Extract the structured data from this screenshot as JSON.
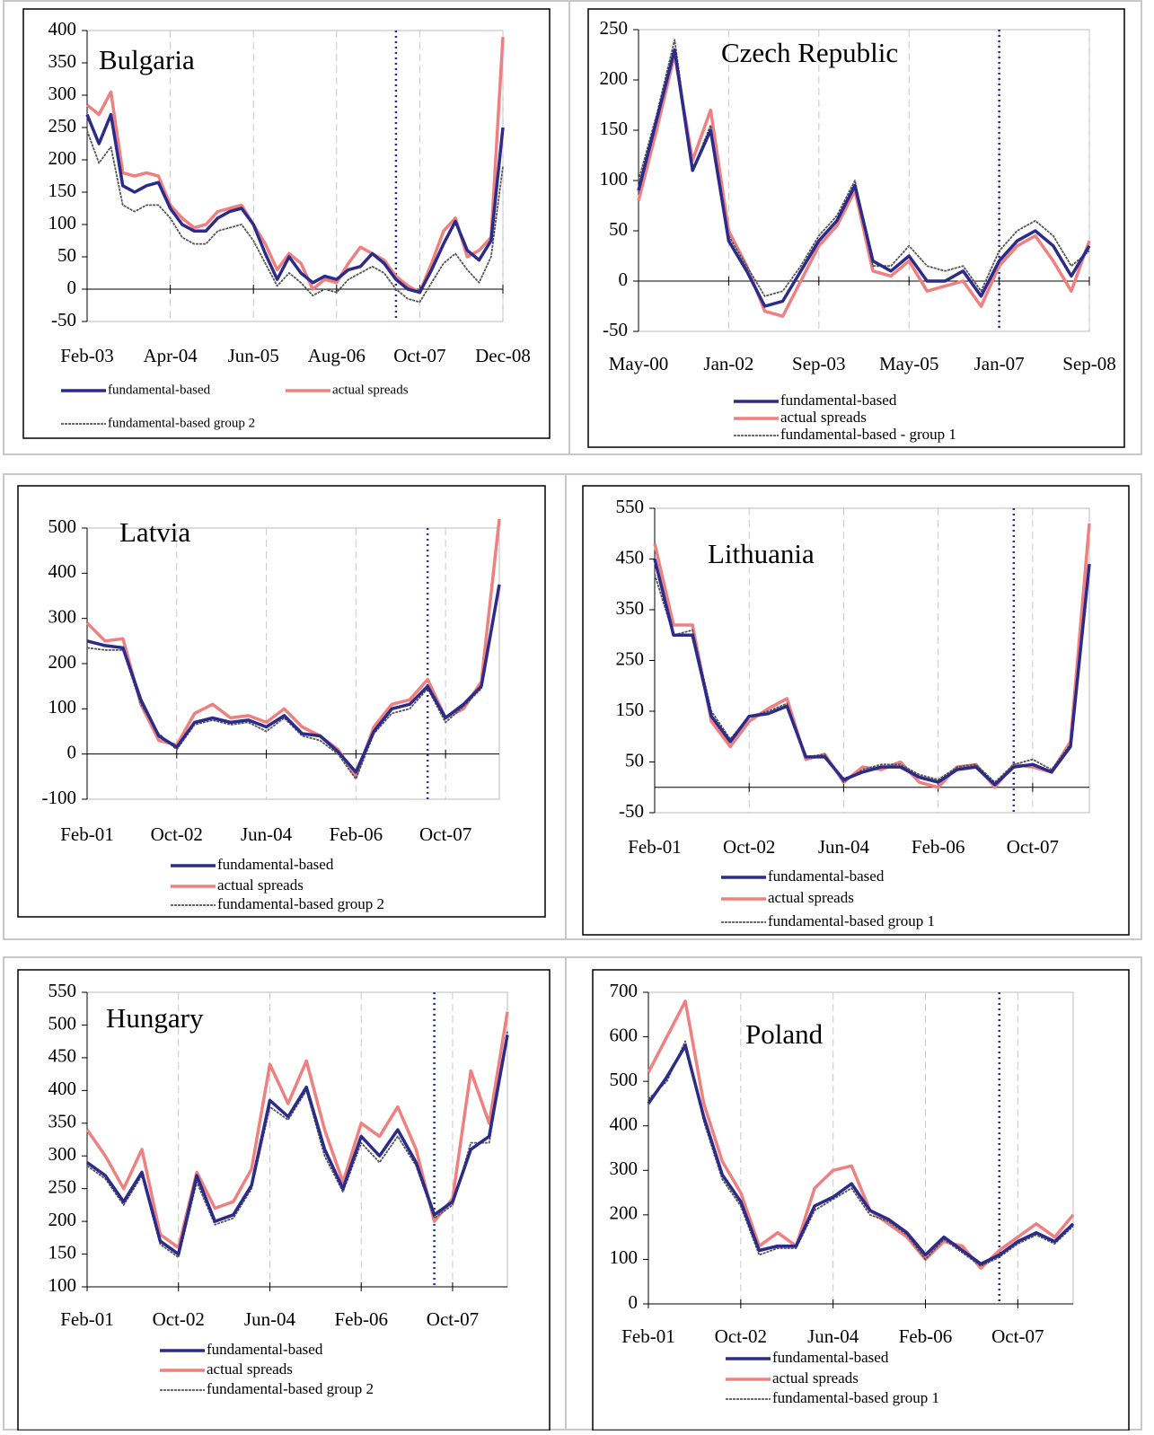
{
  "chart_data": [
    {
      "type": "line",
      "title": "Bulgaria",
      "categories": [
        "Feb-03",
        null,
        null,
        null,
        null,
        null,
        null,
        "Apr-04",
        null,
        null,
        null,
        null,
        null,
        null,
        "Jun-05",
        null,
        null,
        null,
        null,
        null,
        null,
        "Aug-06",
        null,
        null,
        null,
        null,
        null,
        null,
        "Oct-07",
        null,
        null,
        null,
        null,
        null,
        null,
        "Dec-08"
      ],
      "ylim": [
        -50,
        400
      ],
      "yticks": [
        -50,
        0,
        50,
        100,
        150,
        200,
        250,
        300,
        350,
        400
      ],
      "grid": true,
      "vline": {
        "index": 26,
        "color": "#1f2f9f"
      },
      "series": [
        {
          "name": "fundamental-based",
          "color": "#2b2b8c",
          "values": [
            270,
            225,
            270,
            160,
            150,
            160,
            165,
            125,
            100,
            90,
            90,
            110,
            120,
            125,
            100,
            55,
            15,
            50,
            25,
            10,
            20,
            15,
            30,
            35,
            55,
            40,
            15,
            0,
            -5,
            30,
            70,
            105,
            60,
            45,
            75,
            250
          ]
        },
        {
          "name": "actual spreads",
          "color": "#f08080",
          "values": [
            285,
            270,
            305,
            180,
            175,
            180,
            175,
            130,
            110,
            95,
            100,
            120,
            125,
            130,
            100,
            70,
            30,
            55,
            40,
            0,
            15,
            10,
            40,
            65,
            55,
            45,
            20,
            5,
            -5,
            40,
            90,
            110,
            50,
            60,
            80,
            390
          ]
        },
        {
          "name": "fundamental-based group 2",
          "color": "#555555",
          "values": [
            245,
            195,
            220,
            130,
            120,
            130,
            130,
            110,
            80,
            70,
            70,
            90,
            95,
            100,
            75,
            40,
            5,
            25,
            10,
            -10,
            0,
            -5,
            15,
            25,
            35,
            25,
            0,
            -15,
            -20,
            10,
            40,
            55,
            30,
            10,
            50,
            190
          ]
        }
      ]
    },
    {
      "type": "line",
      "title": "Czech Republic",
      "categories": [
        "May-00",
        null,
        null,
        null,
        null,
        "Jan-02",
        null,
        null,
        null,
        null,
        "Sep-03",
        null,
        null,
        null,
        null,
        "May-05",
        null,
        null,
        null,
        null,
        "Jan-07",
        null,
        null,
        null,
        null,
        "Sep-08"
      ],
      "ylim": [
        -50,
        250
      ],
      "yticks": [
        -50,
        0,
        50,
        100,
        150,
        200,
        250
      ],
      "grid": true,
      "vline": {
        "index": 20,
        "color": "#1f2f9f"
      },
      "series": [
        {
          "name": "fundamental-based",
          "color": "#2b2b8c",
          "values": [
            90,
            160,
            230,
            110,
            150,
            40,
            10,
            -25,
            -20,
            10,
            40,
            60,
            95,
            20,
            10,
            25,
            0,
            0,
            10,
            -15,
            20,
            40,
            50,
            35,
            5,
            35
          ]
        },
        {
          "name": "actual spreads",
          "color": "#f08080",
          "values": [
            80,
            150,
            225,
            120,
            170,
            50,
            15,
            -30,
            -35,
            0,
            35,
            55,
            90,
            10,
            5,
            20,
            -10,
            -5,
            0,
            -25,
            15,
            35,
            45,
            20,
            -10,
            40
          ]
        },
        {
          "name": "fundamental-based - group 1",
          "color": "#555555",
          "values": [
            100,
            165,
            240,
            110,
            155,
            45,
            15,
            -15,
            -10,
            15,
            45,
            65,
            100,
            15,
            15,
            35,
            15,
            10,
            15,
            -10,
            30,
            50,
            60,
            45,
            15,
            30
          ]
        }
      ]
    },
    {
      "type": "line",
      "title": "Latvia",
      "categories": [
        "Feb-01",
        null,
        null,
        null,
        null,
        "Oct-02",
        null,
        null,
        null,
        null,
        "Jun-04",
        null,
        null,
        null,
        null,
        "Feb-06",
        null,
        null,
        null,
        null,
        "Oct-07",
        null,
        null,
        null
      ],
      "ylim": [
        -100,
        500
      ],
      "yticks": [
        -100,
        0,
        100,
        200,
        300,
        400,
        500
      ],
      "grid": true,
      "vline": {
        "index": 19,
        "color": "#1f2f9f"
      },
      "series": [
        {
          "name": "fundamental-based",
          "color": "#2b2b8c",
          "values": [
            250,
            240,
            235,
            120,
            40,
            15,
            70,
            80,
            70,
            75,
            60,
            85,
            45,
            40,
            5,
            -40,
            50,
            100,
            110,
            150,
            80,
            110,
            150,
            375
          ]
        },
        {
          "name": "actual spreads",
          "color": "#f08080",
          "values": [
            290,
            250,
            255,
            110,
            30,
            20,
            90,
            110,
            80,
            85,
            70,
            100,
            60,
            40,
            10,
            -50,
            60,
            110,
            120,
            165,
            80,
            100,
            160,
            520
          ]
        },
        {
          "name": "fundamental-based group 2",
          "color": "#555555",
          "values": [
            235,
            230,
            230,
            110,
            45,
            10,
            65,
            75,
            65,
            70,
            50,
            80,
            40,
            30,
            0,
            -55,
            45,
            90,
            100,
            145,
            70,
            105,
            145,
            370
          ]
        }
      ]
    },
    {
      "type": "line",
      "title": "Lithuania",
      "categories": [
        "Feb-01",
        null,
        null,
        null,
        null,
        "Oct-02",
        null,
        null,
        null,
        null,
        "Jun-04",
        null,
        null,
        null,
        null,
        "Feb-06",
        null,
        null,
        null,
        null,
        "Oct-07",
        null,
        null,
        null
      ],
      "ylim": [
        -50,
        550
      ],
      "yticks": [
        -50,
        50,
        150,
        250,
        350,
        450,
        550
      ],
      "grid": true,
      "vline": {
        "index": 19,
        "color": "#1f2f9f"
      },
      "series": [
        {
          "name": "fundamental-based",
          "color": "#2b2b8c",
          "values": [
            450,
            300,
            300,
            140,
            90,
            140,
            145,
            160,
            60,
            60,
            15,
            30,
            40,
            40,
            20,
            10,
            35,
            40,
            5,
            40,
            45,
            30,
            80,
            440
          ]
        },
        {
          "name": "actual spreads",
          "color": "#f08080",
          "values": [
            480,
            320,
            320,
            130,
            80,
            130,
            155,
            175,
            55,
            65,
            10,
            40,
            35,
            50,
            10,
            0,
            40,
            45,
            0,
            45,
            40,
            30,
            90,
            520
          ]
        },
        {
          "name": "fundamental-based group 1",
          "color": "#555555",
          "values": [
            420,
            300,
            310,
            150,
            95,
            140,
            150,
            165,
            60,
            65,
            10,
            35,
            45,
            45,
            25,
            15,
            40,
            45,
            10,
            45,
            55,
            35,
            85,
            430
          ]
        }
      ]
    },
    {
      "type": "line",
      "title": "Hungary",
      "categories": [
        "Feb-01",
        null,
        null,
        null,
        null,
        "Oct-02",
        null,
        null,
        null,
        null,
        "Jun-04",
        null,
        null,
        null,
        null,
        "Feb-06",
        null,
        null,
        null,
        null,
        "Oct-07",
        null,
        null,
        null
      ],
      "ylim": [
        100,
        550
      ],
      "yticks": [
        100,
        150,
        200,
        250,
        300,
        350,
        400,
        450,
        500,
        550
      ],
      "grid": true,
      "vline": {
        "index": 19,
        "color": "#1f2f9f"
      },
      "series": [
        {
          "name": "fundamental-based",
          "color": "#2b2b8c",
          "values": [
            290,
            270,
            230,
            275,
            170,
            150,
            270,
            200,
            210,
            255,
            385,
            360,
            405,
            310,
            250,
            330,
            300,
            340,
            290,
            210,
            230,
            310,
            330,
            485
          ]
        },
        {
          "name": "actual spreads",
          "color": "#f08080",
          "values": [
            340,
            300,
            250,
            310,
            180,
            160,
            275,
            220,
            230,
            280,
            440,
            380,
            445,
            340,
            260,
            350,
            330,
            375,
            310,
            200,
            235,
            430,
            350,
            520
          ]
        },
        {
          "name": "fundamental-based group 2",
          "color": "#555555",
          "values": [
            285,
            265,
            225,
            270,
            165,
            145,
            260,
            195,
            205,
            250,
            375,
            355,
            400,
            300,
            245,
            320,
            290,
            330,
            285,
            205,
            225,
            320,
            320,
            490
          ]
        }
      ]
    },
    {
      "type": "line",
      "title": "Poland",
      "categories": [
        "Feb-01",
        null,
        null,
        null,
        null,
        "Oct-02",
        null,
        null,
        null,
        null,
        "Jun-04",
        null,
        null,
        null,
        null,
        "Feb-06",
        null,
        null,
        null,
        null,
        "Oct-07",
        null,
        null,
        null
      ],
      "ylim": [
        0,
        700
      ],
      "yticks": [
        0,
        100,
        200,
        300,
        400,
        500,
        600,
        700
      ],
      "grid": true,
      "vline": {
        "index": 19,
        "color": "#1f2f9f"
      },
      "series": [
        {
          "name": "fundamental-based",
          "color": "#2b2b8c",
          "values": [
            450,
            510,
            580,
            420,
            290,
            230,
            120,
            130,
            130,
            220,
            240,
            270,
            210,
            190,
            160,
            110,
            150,
            120,
            90,
            110,
            140,
            160,
            140,
            180
          ]
        },
        {
          "name": "actual spreads",
          "color": "#f08080",
          "values": [
            520,
            600,
            680,
            450,
            320,
            250,
            130,
            160,
            130,
            260,
            300,
            310,
            210,
            180,
            150,
            100,
            140,
            130,
            80,
            120,
            150,
            180,
            150,
            200
          ]
        },
        {
          "name": "fundamental-based group 1",
          "color": "#555555",
          "values": [
            460,
            500,
            590,
            410,
            280,
            220,
            110,
            125,
            125,
            210,
            235,
            260,
            200,
            185,
            155,
            100,
            145,
            115,
            85,
            105,
            135,
            155,
            135,
            175
          ]
        }
      ]
    }
  ]
}
